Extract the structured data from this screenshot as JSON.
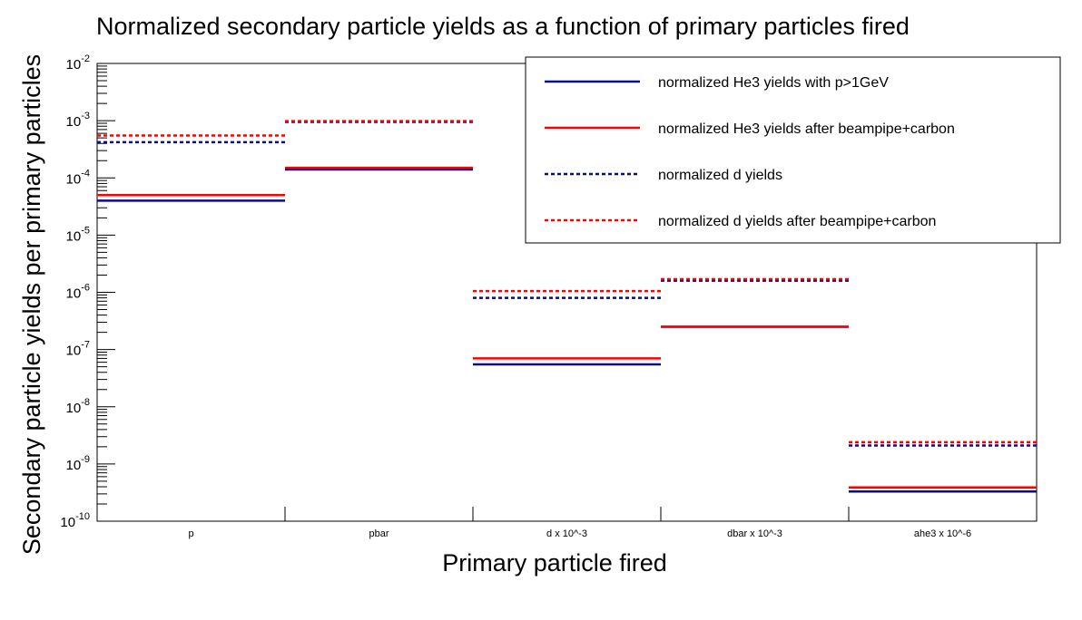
{
  "chart_data": {
    "type": "bar",
    "title": "Normalized secondary particle yields as a function of primary particles fired",
    "xlabel": "Primary particle fired",
    "ylabel": "Secondary particle yields per primary particles",
    "categories": [
      "p",
      "pbar",
      "d x 10^-3",
      "dbar x 10^-3",
      "ahe3 x 10^-6"
    ],
    "y_scale": "log",
    "ylim": [
      1e-10,
      0.01
    ],
    "y_ticks": [
      {
        "base": "10",
        "exp": "-10"
      },
      {
        "base": "10",
        "exp": "-9"
      },
      {
        "base": "10",
        "exp": "-8"
      },
      {
        "base": "10",
        "exp": "-7"
      },
      {
        "base": "10",
        "exp": "-6"
      },
      {
        "base": "10",
        "exp": "-5"
      },
      {
        "base": "10",
        "exp": "-4"
      },
      {
        "base": "10",
        "exp": "-3"
      },
      {
        "base": "10",
        "exp": "-2"
      }
    ],
    "grid": false,
    "legend_position": "top-right",
    "series": [
      {
        "name": "normalized He3 yields with p>1GeV",
        "color": "#0a0a8c",
        "style": "solid",
        "values": [
          4e-05,
          0.00014,
          5.5e-08,
          2.5e-07,
          3.3e-10
        ]
      },
      {
        "name": "normalized He3 yields after beampipe+carbon",
        "color": "#ff0000",
        "style": "solid",
        "values": [
          5e-05,
          0.00015,
          7e-08,
          2.5e-07,
          3.9e-10
        ]
      },
      {
        "name": "normalized d yields",
        "color": "#0a0a8c",
        "style": "dotted",
        "values": [
          0.00042,
          0.00095,
          8e-07,
          1.6e-06,
          2.1e-09
        ]
      },
      {
        "name": "normalized d yields after beampipe+carbon",
        "color": "#ff0000",
        "style": "dotted",
        "values": [
          0.00055,
          0.00098,
          1.05e-06,
          1.7e-06,
          2.4e-09
        ]
      }
    ]
  }
}
